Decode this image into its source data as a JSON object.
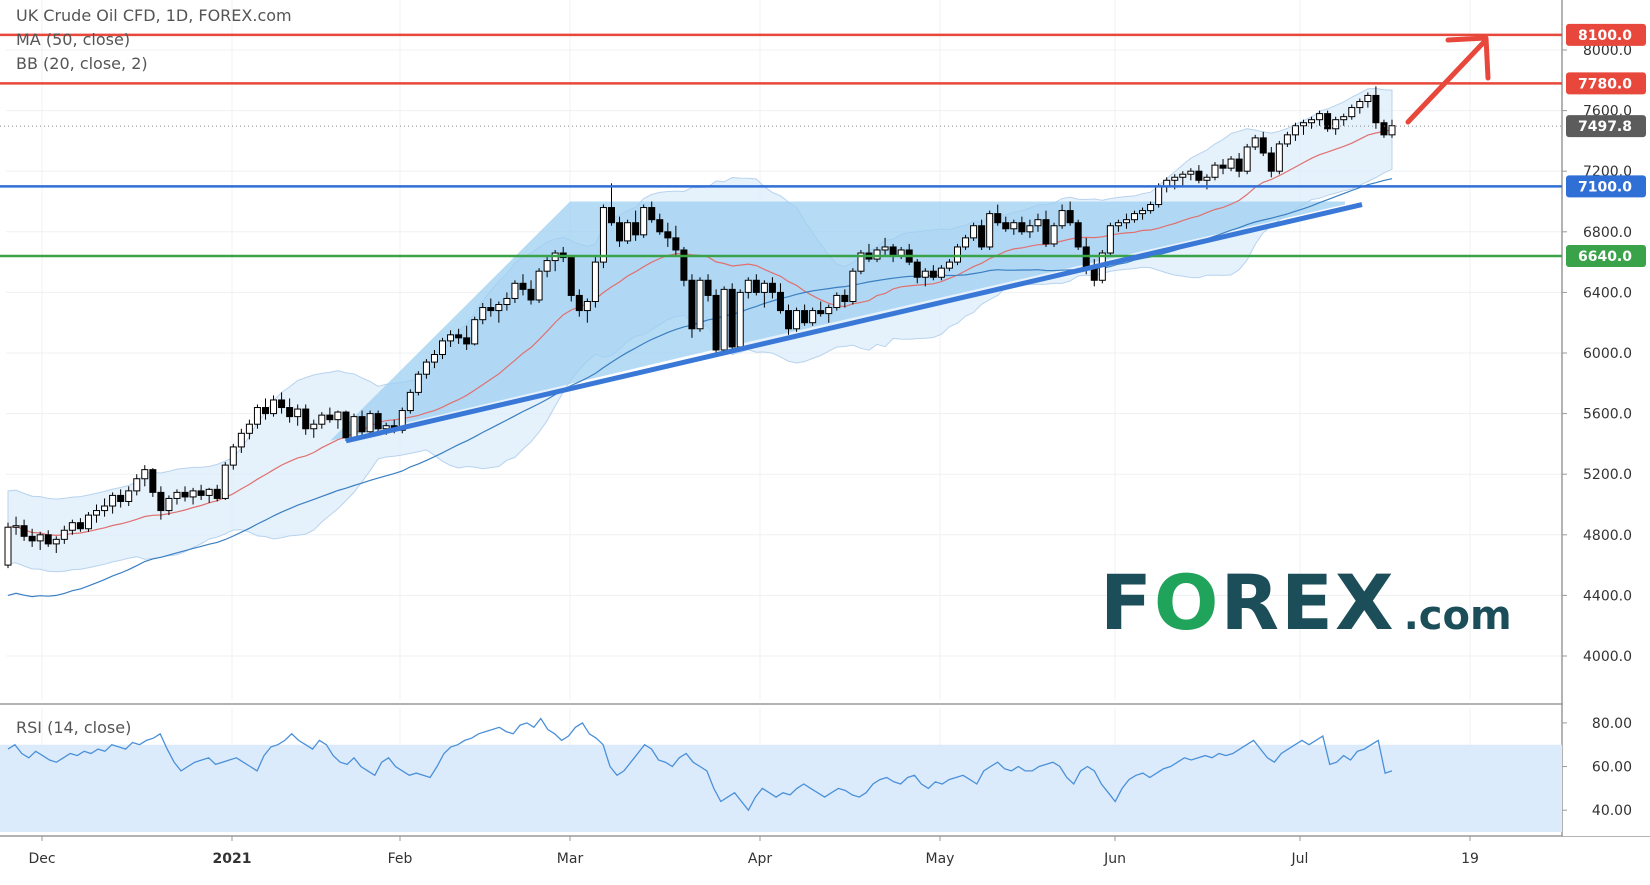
{
  "header": {
    "symbol": "UK Crude Oil CFD, 1D, FOREX.com",
    "ma_label": "MA (50, close)",
    "bb_label": "BB (20, close, 2)",
    "rsi_label": "RSI (14, close)"
  },
  "logo": {
    "main": "F",
    "o": "O",
    "rest": "REX",
    "suffix": ".com"
  },
  "colors": {
    "resistance": "#e8473b",
    "support_blue": "#2f6fd6",
    "support_green": "#3aa34a",
    "price_tag": "#5c5c5c",
    "triangle_fill": "#9ecff2",
    "bb_fill": "#dcecfa",
    "ma50": "#3a7fc1",
    "bb_basis": "#e07070",
    "trendline": "#3a78d8",
    "rsi_line": "#4a90d9"
  },
  "chart_data": {
    "type": "candlestick",
    "title": "UK Crude Oil CFD, 1D, FOREX.com",
    "y_range": [
      3700,
      8200
    ],
    "y_ticks": [
      "8000.0",
      "7600.0",
      "7200.0",
      "6800.0",
      "6400.0",
      "6000.0",
      "5600.0",
      "5200.0",
      "4800.0",
      "4400.0",
      "4000.0"
    ],
    "x_ticks": [
      {
        "label": "Dec",
        "bold": false
      },
      {
        "label": "2021",
        "bold": true
      },
      {
        "label": "Feb",
        "bold": false
      },
      {
        "label": "Mar",
        "bold": false
      },
      {
        "label": "Apr",
        "bold": false
      },
      {
        "label": "May",
        "bold": false
      },
      {
        "label": "Jun",
        "bold": false
      },
      {
        "label": "Jul",
        "bold": false
      },
      {
        "label": "19",
        "bold": false
      }
    ],
    "levels": [
      {
        "value": 8100,
        "label": "8100.0",
        "color": "resistance"
      },
      {
        "value": 7780,
        "label": "7780.0",
        "color": "resistance"
      },
      {
        "value": 7100,
        "label": "7100.0",
        "color": "support_blue"
      },
      {
        "value": 6640,
        "label": "6640.0",
        "color": "support_green"
      }
    ],
    "last_price": {
      "value": 7497.8,
      "label": "7497.8"
    },
    "rsi": {
      "range": [
        30,
        85
      ],
      "ticks": [
        "80.00",
        "60.00",
        "40.00"
      ],
      "band": [
        30,
        70
      ],
      "values": [
        68,
        70,
        66,
        64,
        67,
        65,
        63,
        62,
        64,
        66,
        65,
        67,
        66,
        68,
        67,
        70,
        69,
        68,
        71,
        70,
        72,
        73,
        75,
        68,
        62,
        58,
        60,
        62,
        63,
        64,
        61,
        62,
        63,
        64,
        62,
        60,
        58,
        65,
        69,
        70,
        72,
        75,
        72,
        70,
        68,
        72,
        70,
        65,
        62,
        61,
        64,
        60,
        58,
        56,
        62,
        64,
        60,
        58,
        56,
        57,
        56,
        55,
        60,
        66,
        69,
        70,
        72,
        73,
        75,
        76,
        77,
        78,
        76,
        75,
        79,
        80,
        78,
        82,
        77,
        75,
        72,
        74,
        78,
        80,
        75,
        73,
        70,
        60,
        56,
        58,
        62,
        66,
        70,
        68,
        63,
        62,
        60,
        64,
        66,
        62,
        60,
        58,
        50,
        44,
        46,
        48,
        44,
        40,
        46,
        50,
        48,
        46,
        48,
        47,
        50,
        52,
        50,
        48,
        46,
        48,
        50,
        49,
        47,
        46,
        48,
        52,
        54,
        55,
        53,
        52,
        55,
        56,
        52,
        50,
        53,
        52,
        54,
        55,
        56,
        54,
        52,
        58,
        60,
        62,
        59,
        58,
        60,
        58,
        58,
        60,
        61,
        62,
        60,
        55,
        52,
        58,
        60,
        58,
        52,
        48,
        44,
        50,
        54,
        56,
        57,
        55,
        57,
        59,
        60,
        62,
        64,
        63,
        64,
        65,
        64,
        66,
        65,
        66,
        68,
        70,
        72,
        68,
        64,
        62,
        66,
        68,
        70,
        72,
        70,
        72,
        74,
        61,
        62,
        65,
        63,
        67,
        68,
        70,
        72,
        57,
        58
      ]
    },
    "candles_note": "daily OHLC from late Nov 2020 to early Jul 2021, values in price units",
    "candles": [
      [
        4600,
        4880,
        4580,
        4850
      ],
      [
        4850,
        4920,
        4800,
        4860
      ],
      [
        4860,
        4900,
        4760,
        4790
      ],
      [
        4790,
        4840,
        4720,
        4760
      ],
      [
        4760,
        4820,
        4700,
        4800
      ],
      [
        4800,
        4830,
        4720,
        4740
      ],
      [
        4740,
        4790,
        4680,
        4770
      ],
      [
        4770,
        4860,
        4740,
        4830
      ],
      [
        4830,
        4900,
        4800,
        4880
      ],
      [
        4880,
        4910,
        4820,
        4840
      ],
      [
        4840,
        4950,
        4820,
        4930
      ],
      [
        4930,
        5000,
        4880,
        4960
      ],
      [
        4960,
        5040,
        4920,
        4990
      ],
      [
        4990,
        5080,
        4940,
        5060
      ],
      [
        5060,
        5100,
        4980,
        5020
      ],
      [
        5020,
        5120,
        4990,
        5090
      ],
      [
        5090,
        5200,
        5060,
        5170
      ],
      [
        5170,
        5260,
        5120,
        5230
      ],
      [
        5230,
        5240,
        5050,
        5080
      ],
      [
        5080,
        5120,
        4900,
        4960
      ],
      [
        4960,
        5060,
        4930,
        5040
      ],
      [
        5040,
        5100,
        5000,
        5080
      ],
      [
        5080,
        5120,
        5020,
        5050
      ],
      [
        5050,
        5110,
        5000,
        5090
      ],
      [
        5090,
        5130,
        5030,
        5060
      ],
      [
        5060,
        5110,
        5010,
        5100
      ],
      [
        5100,
        5130,
        5020,
        5040
      ],
      [
        5040,
        5280,
        5030,
        5260
      ],
      [
        5260,
        5400,
        5230,
        5380
      ],
      [
        5380,
        5500,
        5340,
        5470
      ],
      [
        5470,
        5560,
        5430,
        5530
      ],
      [
        5530,
        5660,
        5500,
        5640
      ],
      [
        5640,
        5700,
        5560,
        5600
      ],
      [
        5600,
        5720,
        5580,
        5690
      ],
      [
        5690,
        5740,
        5600,
        5640
      ],
      [
        5640,
        5700,
        5540,
        5580
      ],
      [
        5580,
        5660,
        5520,
        5630
      ],
      [
        5630,
        5660,
        5460,
        5500
      ],
      [
        5500,
        5560,
        5440,
        5530
      ],
      [
        5530,
        5610,
        5500,
        5590
      ],
      [
        5590,
        5640,
        5540,
        5560
      ],
      [
        5560,
        5620,
        5500,
        5610
      ],
      [
        5610,
        5620,
        5420,
        5440
      ],
      [
        5440,
        5600,
        5420,
        5580
      ],
      [
        5580,
        5620,
        5460,
        5480
      ],
      [
        5480,
        5620,
        5460,
        5600
      ],
      [
        5600,
        5620,
        5480,
        5500
      ],
      [
        5500,
        5540,
        5460,
        5520
      ],
      [
        5520,
        5560,
        5470,
        5490
      ],
      [
        5490,
        5640,
        5470,
        5620
      ],
      [
        5620,
        5760,
        5600,
        5740
      ],
      [
        5740,
        5880,
        5720,
        5860
      ],
      [
        5860,
        5960,
        5830,
        5940
      ],
      [
        5940,
        6020,
        5900,
        5990
      ],
      [
        5990,
        6100,
        5960,
        6080
      ],
      [
        6080,
        6150,
        6040,
        6120
      ],
      [
        6120,
        6160,
        6060,
        6100
      ],
      [
        6100,
        6180,
        6020,
        6060
      ],
      [
        6060,
        6240,
        6050,
        6220
      ],
      [
        6220,
        6330,
        6190,
        6300
      ],
      [
        6300,
        6360,
        6240,
        6280
      ],
      [
        6280,
        6340,
        6200,
        6320
      ],
      [
        6320,
        6400,
        6280,
        6360
      ],
      [
        6360,
        6480,
        6330,
        6460
      ],
      [
        6460,
        6520,
        6380,
        6420
      ],
      [
        6420,
        6480,
        6320,
        6350
      ],
      [
        6350,
        6560,
        6330,
        6540
      ],
      [
        6540,
        6640,
        6500,
        6610
      ],
      [
        6610,
        6680,
        6540,
        6660
      ],
      [
        6660,
        6700,
        6600,
        6630
      ],
      [
        6630,
        6640,
        6340,
        6380
      ],
      [
        6380,
        6420,
        6240,
        6280
      ],
      [
        6280,
        6360,
        6200,
        6340
      ],
      [
        6340,
        6640,
        6300,
        6600
      ],
      [
        6600,
        6980,
        6560,
        6960
      ],
      [
        6960,
        7120,
        6840,
        6860
      ],
      [
        6860,
        6900,
        6700,
        6740
      ],
      [
        6740,
        6880,
        6720,
        6860
      ],
      [
        6860,
        6940,
        6740,
        6780
      ],
      [
        6780,
        6980,
        6760,
        6960
      ],
      [
        6960,
        7000,
        6860,
        6880
      ],
      [
        6880,
        6920,
        6780,
        6800
      ],
      [
        6800,
        6860,
        6700,
        6760
      ],
      [
        6760,
        6840,
        6640,
        6680
      ],
      [
        6680,
        6700,
        6440,
        6480
      ],
      [
        6480,
        6520,
        6100,
        6160
      ],
      [
        6160,
        6500,
        6140,
        6480
      ],
      [
        6480,
        6520,
        6340,
        6380
      ],
      [
        6380,
        6420,
        6000,
        6020
      ],
      [
        6020,
        6440,
        6000,
        6420
      ],
      [
        6420,
        6460,
        6000,
        6040
      ],
      [
        6040,
        6420,
        6020,
        6400
      ],
      [
        6400,
        6500,
        6360,
        6480
      ],
      [
        6480,
        6520,
        6380,
        6400
      ],
      [
        6400,
        6480,
        6300,
        6460
      ],
      [
        6460,
        6500,
        6360,
        6400
      ],
      [
        6400,
        6460,
        6260,
        6280
      ],
      [
        6280,
        6320,
        6120,
        6160
      ],
      [
        6160,
        6300,
        6140,
        6280
      ],
      [
        6280,
        6320,
        6180,
        6200
      ],
      [
        6200,
        6300,
        6180,
        6280
      ],
      [
        6280,
        6340,
        6240,
        6260
      ],
      [
        6260,
        6320,
        6200,
        6300
      ],
      [
        6300,
        6400,
        6280,
        6380
      ],
      [
        6380,
        6420,
        6300,
        6340
      ],
      [
        6340,
        6560,
        6320,
        6540
      ],
      [
        6540,
        6680,
        6520,
        6660
      ],
      [
        6660,
        6720,
        6600,
        6620
      ],
      [
        6620,
        6700,
        6600,
        6680
      ],
      [
        6680,
        6760,
        6640,
        6700
      ],
      [
        6700,
        6720,
        6600,
        6640
      ],
      [
        6640,
        6700,
        6620,
        6680
      ],
      [
        6680,
        6720,
        6580,
        6600
      ],
      [
        6600,
        6620,
        6460,
        6500
      ],
      [
        6500,
        6560,
        6440,
        6540
      ],
      [
        6540,
        6580,
        6480,
        6500
      ],
      [
        6500,
        6580,
        6480,
        6560
      ],
      [
        6560,
        6620,
        6540,
        6600
      ],
      [
        6600,
        6720,
        6580,
        6700
      ],
      [
        6700,
        6780,
        6680,
        6760
      ],
      [
        6760,
        6860,
        6740,
        6840
      ],
      [
        6840,
        6880,
        6680,
        6700
      ],
      [
        6700,
        6940,
        6680,
        6920
      ],
      [
        6920,
        6980,
        6840,
        6860
      ],
      [
        6860,
        6900,
        6800,
        6820
      ],
      [
        6820,
        6880,
        6780,
        6860
      ],
      [
        6860,
        6900,
        6780,
        6800
      ],
      [
        6800,
        6880,
        6760,
        6840
      ],
      [
        6840,
        6920,
        6800,
        6880
      ],
      [
        6880,
        6940,
        6700,
        6720
      ],
      [
        6720,
        6860,
        6700,
        6840
      ],
      [
        6840,
        6980,
        6820,
        6940
      ],
      [
        6940,
        7000,
        6840,
        6860
      ],
      [
        6860,
        6880,
        6680,
        6700
      ],
      [
        6700,
        6760,
        6520,
        6560
      ],
      [
        6560,
        6620,
        6440,
        6480
      ],
      [
        6480,
        6680,
        6460,
        6660
      ],
      [
        6660,
        6860,
        6640,
        6840
      ],
      [
        6840,
        6880,
        6800,
        6860
      ],
      [
        6860,
        6920,
        6820,
        6880
      ],
      [
        6880,
        6940,
        6860,
        6920
      ],
      [
        6920,
        6960,
        6880,
        6940
      ],
      [
        6940,
        7000,
        6920,
        6980
      ],
      [
        6980,
        7120,
        6960,
        7100
      ],
      [
        7100,
        7160,
        7060,
        7140
      ],
      [
        7140,
        7180,
        7080,
        7160
      ],
      [
        7160,
        7200,
        7100,
        7180
      ],
      [
        7180,
        7220,
        7140,
        7200
      ],
      [
        7200,
        7240,
        7120,
        7140
      ],
      [
        7140,
        7180,
        7080,
        7160
      ],
      [
        7160,
        7260,
        7140,
        7240
      ],
      [
        7240,
        7280,
        7180,
        7220
      ],
      [
        7220,
        7300,
        7200,
        7280
      ],
      [
        7280,
        7320,
        7160,
        7200
      ],
      [
        7200,
        7380,
        7180,
        7360
      ],
      [
        7360,
        7440,
        7340,
        7420
      ],
      [
        7420,
        7460,
        7300,
        7320
      ],
      [
        7320,
        7360,
        7160,
        7200
      ],
      [
        7200,
        7400,
        7180,
        7380
      ],
      [
        7380,
        7460,
        7360,
        7440
      ],
      [
        7440,
        7520,
        7400,
        7500
      ],
      [
        7500,
        7540,
        7440,
        7520
      ],
      [
        7520,
        7560,
        7480,
        7540
      ],
      [
        7540,
        7600,
        7500,
        7580
      ],
      [
        7580,
        7600,
        7460,
        7480
      ],
      [
        7480,
        7560,
        7440,
        7540
      ],
      [
        7540,
        7580,
        7500,
        7560
      ],
      [
        7560,
        7640,
        7540,
        7620
      ],
      [
        7620,
        7680,
        7580,
        7660
      ],
      [
        7660,
        7720,
        7620,
        7700
      ],
      [
        7700,
        7760,
        7480,
        7520
      ],
      [
        7520,
        7540,
        7420,
        7440
      ],
      [
        7440,
        7540,
        7420,
        7500
      ]
    ]
  }
}
